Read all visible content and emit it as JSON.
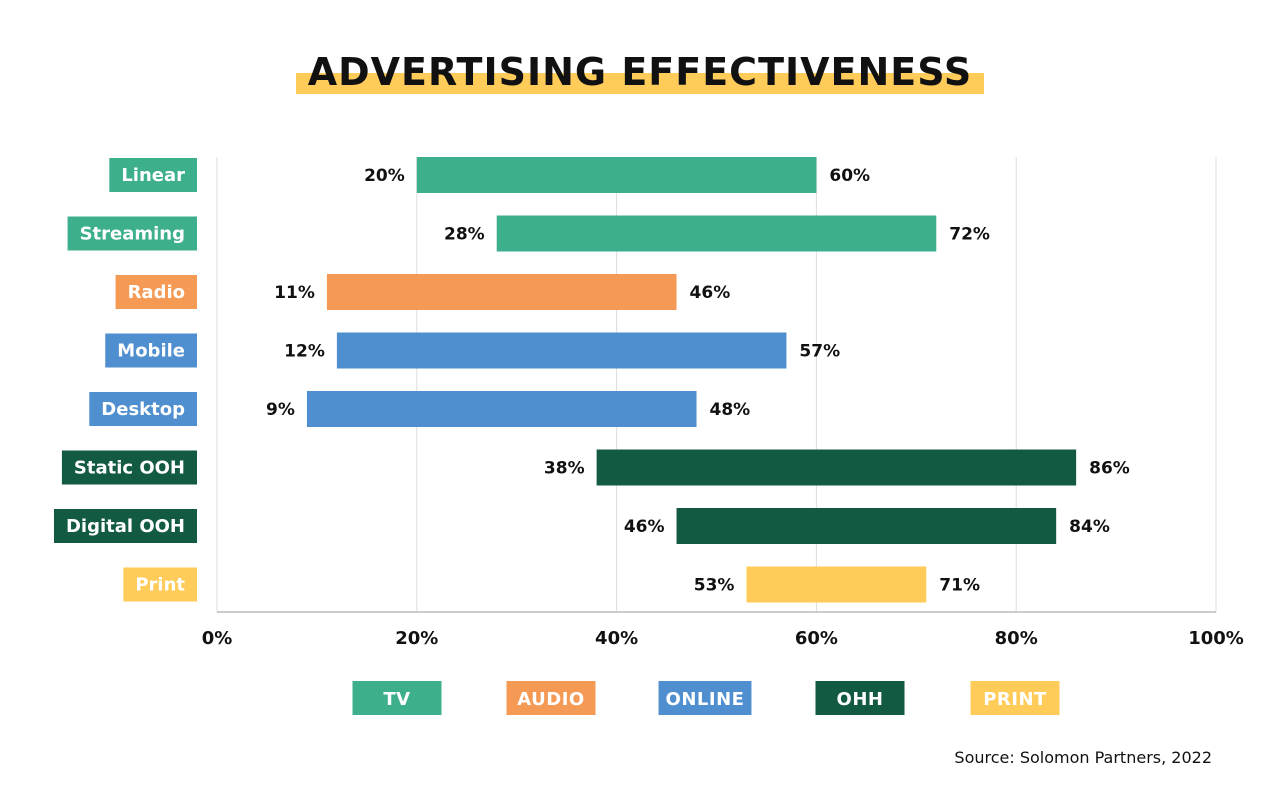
{
  "title": "ADVERTISING EFFECTIVENESS",
  "source": "Source: Solomon Partners, 2022",
  "colors": {
    "TV": "#3daf8c",
    "AUDIO": "#f59a55",
    "ONLINE": "#4f8fcf",
    "OHH": "#135a42",
    "PRINT": "#ffcb59",
    "grid": "#dddddd",
    "axis": "#bbbbbb",
    "text": "#111111"
  },
  "chart_data": {
    "type": "bar",
    "orientation": "horizontal-range",
    "categories": [
      "Linear",
      "Streaming",
      "Radio",
      "Mobile",
      "Desktop",
      "Static OOH",
      "Digital OOH",
      "Print"
    ],
    "groups": [
      "TV",
      "TV",
      "AUDIO",
      "ONLINE",
      "ONLINE",
      "OHH",
      "OHH",
      "PRINT"
    ],
    "low": [
      20,
      28,
      11,
      12,
      9,
      38,
      46,
      53
    ],
    "high": [
      60,
      72,
      46,
      57,
      48,
      86,
      84,
      71
    ],
    "low_labels": [
      "20%",
      "28%",
      "11%",
      "12%",
      "9%",
      "38%",
      "46%",
      "53%"
    ],
    "high_labels": [
      "60%",
      "72%",
      "46%",
      "57%",
      "48%",
      "86%",
      "84%",
      "71%"
    ],
    "xlim": [
      0,
      100
    ],
    "xticks": [
      0,
      20,
      40,
      60,
      80,
      100
    ],
    "xtick_labels": [
      "0%",
      "20%",
      "40%",
      "60%",
      "80%",
      "100%"
    ],
    "grid": true,
    "legend": [
      "TV",
      "AUDIO",
      "ONLINE",
      "OHH",
      "PRINT"
    ],
    "legend_position": "bottom"
  }
}
